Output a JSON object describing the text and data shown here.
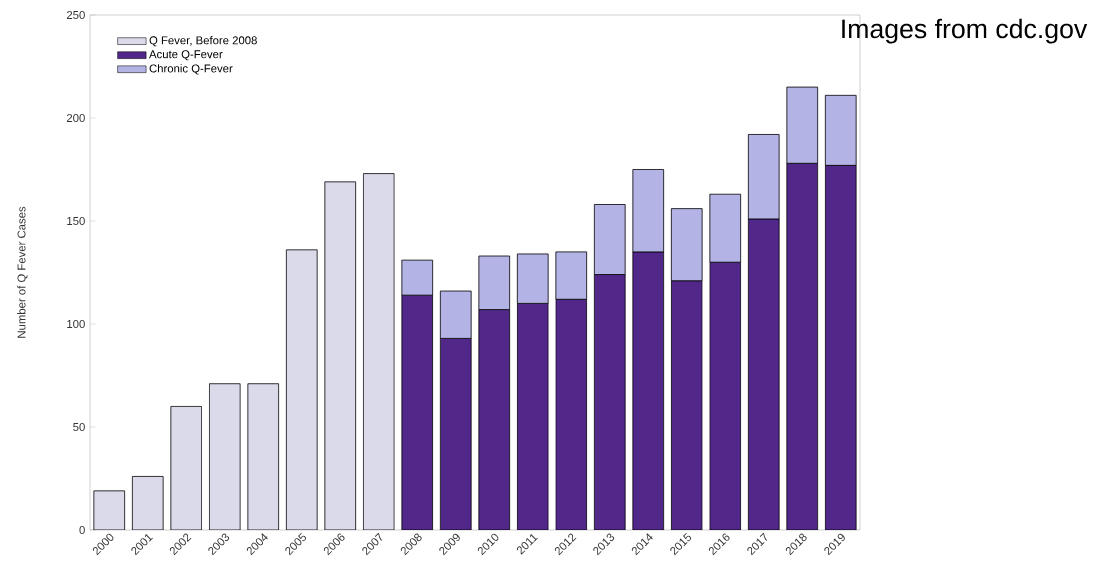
{
  "chart_data": {
    "type": "bar",
    "stacked": true,
    "ylabel": "Number of Q Fever Cases",
    "annotations": [
      "Images from cdc.gov"
    ],
    "categories": [
      "2000",
      "2001",
      "2002",
      "2003",
      "2004",
      "2005",
      "2006",
      "2007",
      "2008",
      "2009",
      "2010",
      "2011",
      "2012",
      "2013",
      "2014",
      "2015",
      "2016",
      "2017",
      "2018",
      "2019"
    ],
    "series": [
      {
        "name": "Q Fever, Before 2008",
        "color": "#dadaea",
        "values": [
          19,
          26,
          60,
          71,
          71,
          136,
          169,
          173,
          null,
          null,
          null,
          null,
          null,
          null,
          null,
          null,
          null,
          null,
          null,
          null
        ]
      },
      {
        "name": "Acute Q-Fever",
        "color": "#51278a",
        "values": [
          null,
          null,
          null,
          null,
          null,
          null,
          null,
          null,
          114,
          93,
          107,
          110,
          112,
          124,
          135,
          121,
          130,
          151,
          178,
          177
        ]
      },
      {
        "name": "Chronic Q-Fever",
        "color": "#b3b3e6",
        "values": [
          null,
          null,
          null,
          null,
          null,
          null,
          null,
          null,
          17,
          23,
          26,
          24,
          23,
          34,
          40,
          35,
          33,
          41,
          37,
          34
        ]
      }
    ],
    "ylim": [
      0,
      250
    ],
    "yticks": [
      0,
      50,
      100,
      150,
      200,
      250
    ],
    "legend": "top left"
  }
}
